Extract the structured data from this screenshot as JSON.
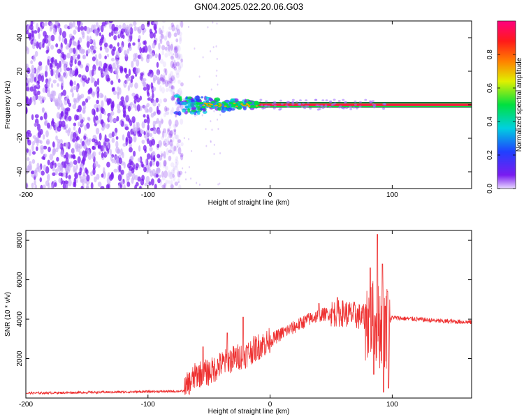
{
  "title": "GN04.2025.022.20.06.G03",
  "colors": {
    "snr_line": "#ee3030",
    "scatter_purple": "#7a1cf0",
    "scatter_light": "#c8a8f8",
    "band_red": "#ff1a40",
    "band_green": "#00e040",
    "band_cyan": "#00c8e0"
  },
  "chart_data": [
    {
      "type": "heatmap",
      "xlabel": "Height of straight line (km)",
      "ylabel": "Frequency (Hz)",
      "xlim": [
        -200,
        165
      ],
      "ylim": [
        -50,
        50
      ],
      "x_ticks": [
        -200,
        -100,
        0,
        100
      ],
      "y_ticks": [
        -40,
        -20,
        0,
        20,
        40
      ],
      "colorbar": {
        "label": "Normalized spectral amplitude",
        "range": [
          0.0,
          1.0
        ],
        "ticks": [
          "0.0",
          "0.2",
          "0.4",
          "0.6",
          "0.8"
        ],
        "tick_values": [
          0.0,
          0.2,
          0.4,
          0.6,
          0.8
        ],
        "colormap": "rainbow (purple-blue-cyan-green-yellow-red-pink)"
      },
      "regions": [
        {
          "x_range": [
            -200,
            -80
          ],
          "description": "broadband noise, low amplitude (0.1-0.3)"
        },
        {
          "x_range": [
            -75,
            -10
          ],
          "frequency": 0,
          "amplitude": 0.6
        },
        {
          "x_range": [
            -10,
            165
          ],
          "frequency": 0,
          "amplitude": 0.95
        }
      ],
      "grid": false
    },
    {
      "type": "line",
      "xlabel": "Height of straight line (km)",
      "ylabel": "SNR (10 * v/v)",
      "xlim": [
        -200,
        165
      ],
      "ylim": [
        0,
        8500
      ],
      "x_ticks": [
        -200,
        -100,
        0,
        100
      ],
      "y_ticks": [
        2000,
        4000,
        6000,
        8000
      ],
      "series": [
        {
          "envelope_x": [
            -200,
            -130,
            -70,
            -68,
            -60,
            -50,
            -40,
            -30,
            -20,
            -10,
            0,
            10,
            20,
            30,
            40,
            50,
            60,
            70,
            80,
            85,
            90,
            95,
            100,
            105,
            120,
            140,
            165
          ],
          "envelope_y": [
            250,
            300,
            350,
            600,
            1200,
            1300,
            1700,
            2000,
            2200,
            2600,
            2900,
            3300,
            3600,
            3950,
            4200,
            4300,
            4300,
            4200,
            4000,
            3800,
            3600,
            3600,
            4100,
            4050,
            4000,
            3900,
            3850
          ],
          "peaks": [
            {
              "x": -55,
              "y": 2600
            },
            {
              "x": -35,
              "y": 3300
            },
            {
              "x": -22,
              "y": 4100
            },
            {
              "x": 40,
              "y": 4800
            },
            {
              "x": 55,
              "y": 5100
            },
            {
              "x": 82,
              "y": 6600
            },
            {
              "x": 88,
              "y": 8300
            },
            {
              "x": 92,
              "y": 6800
            },
            {
              "x": 96,
              "y": 5400
            }
          ],
          "dips": [
            {
              "x": 85,
              "y": 1200
            },
            {
              "x": 93,
              "y": 300
            },
            {
              "x": 97,
              "y": 500
            }
          ]
        }
      ],
      "grid": false
    }
  ]
}
